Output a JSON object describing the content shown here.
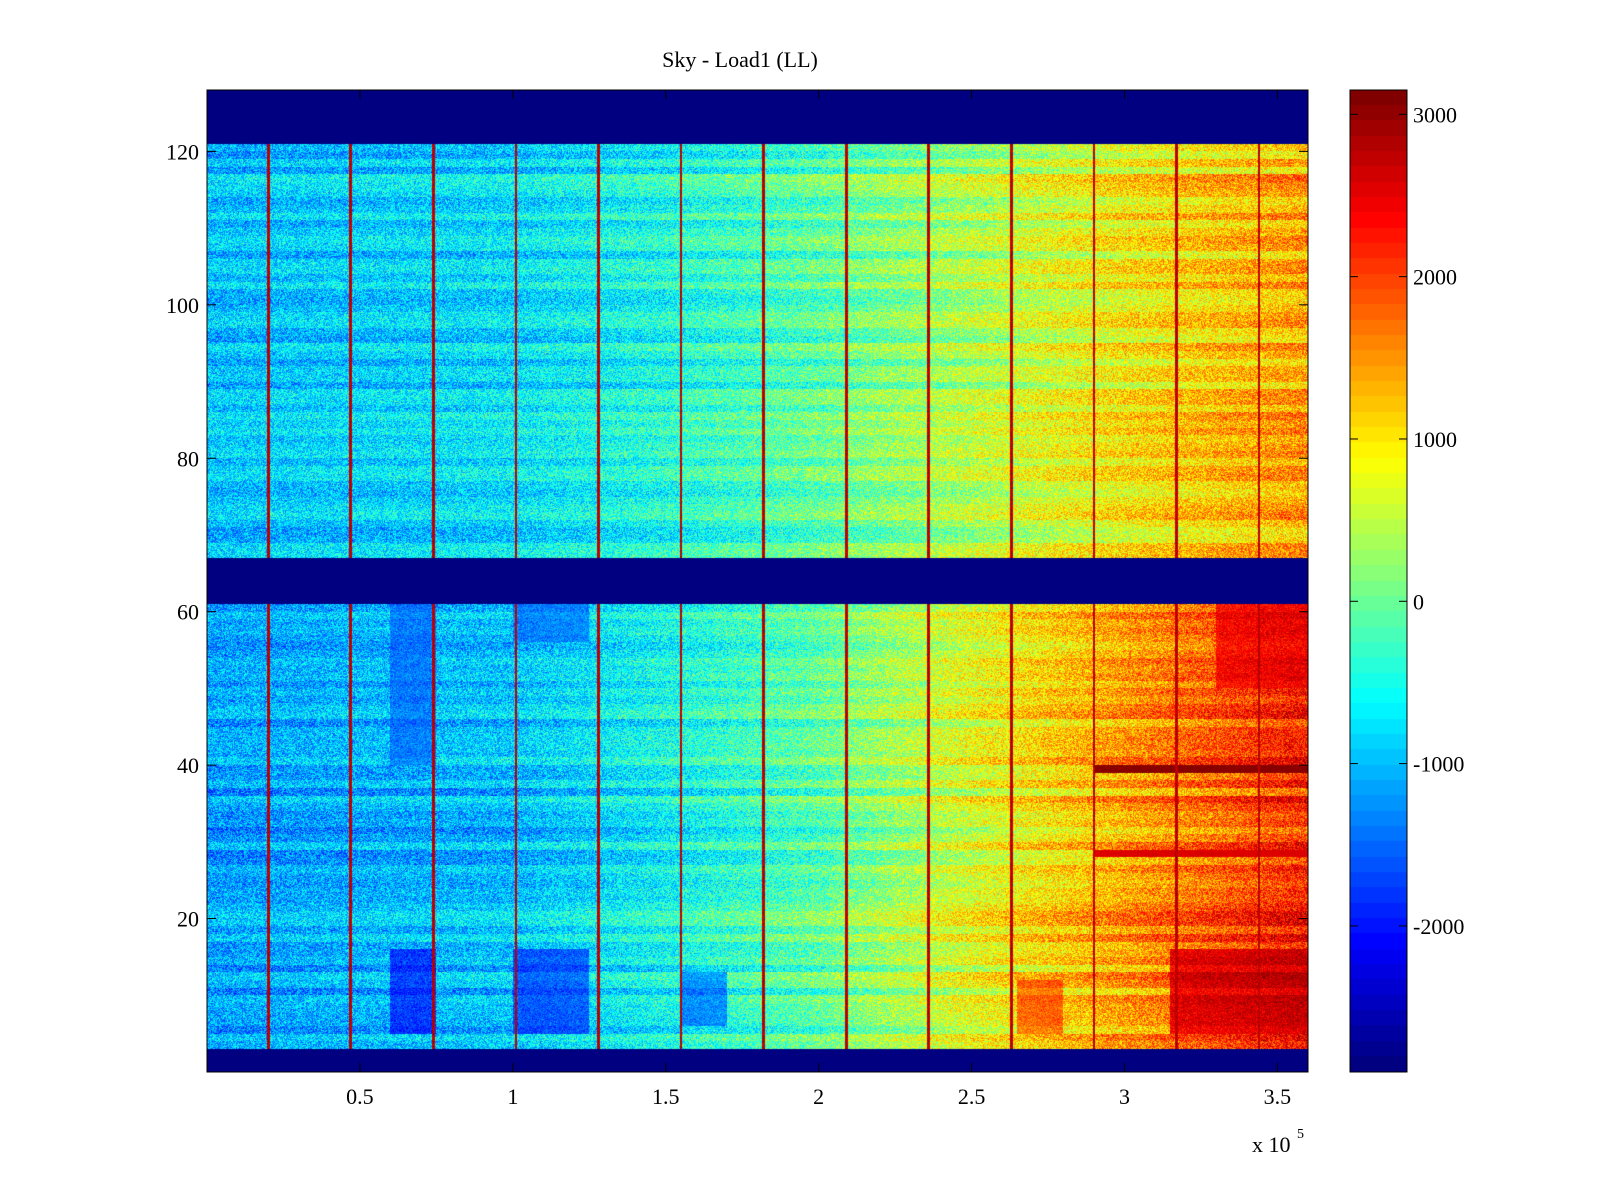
{
  "chart_data": {
    "type": "heatmap",
    "title": "Sky - Load1 (LL)",
    "xlabel": "",
    "ylabel": "",
    "x_multiplier_label": "x 10",
    "x_multiplier_exponent": "5",
    "xlim": [
      0,
      3.6
    ],
    "ylim": [
      0,
      128
    ],
    "x_ticks": [
      0.5,
      1,
      1.5,
      2,
      2.5,
      3,
      3.5
    ],
    "x_tick_labels": [
      "0.5",
      "1",
      "1.5",
      "2",
      "2.5",
      "3",
      "3.5"
    ],
    "y_ticks": [
      20,
      40,
      60,
      80,
      100,
      120
    ],
    "y_tick_labels": [
      "20",
      "40",
      "60",
      "80",
      "100",
      "120"
    ],
    "colormap": "jet",
    "color_limits": [
      -2900,
      3150
    ],
    "colorbar_ticks": [
      3000,
      2000,
      1000,
      0,
      -1000,
      -2000
    ],
    "colorbar_tick_labels": [
      "3000",
      "2000",
      "1000",
      "0",
      "-1000",
      "-2000"
    ],
    "masked_row_ranges": [
      [
        0,
        3
      ],
      [
        61,
        67
      ],
      [
        121,
        128
      ]
    ],
    "masked_value": -2900,
    "trend": {
      "x": [
        0,
        0.5,
        1,
        1.5,
        2,
        2.5,
        3,
        3.6
      ],
      "mean_value": [
        -1000,
        -900,
        -800,
        -500,
        -100,
        400,
        900,
        1400
      ]
    },
    "lower_block_extra_trend": {
      "x": [
        0,
        1,
        2,
        2.5,
        3,
        3.6
      ],
      "offset": [
        -200,
        -200,
        0,
        300,
        500,
        800
      ]
    },
    "vertical_stripes_x": [
      0.2,
      0.47,
      0.74,
      1.01,
      1.28,
      1.55,
      1.82,
      2.09,
      2.36,
      2.63,
      2.9,
      3.17,
      3.44
    ],
    "vertical_stripe_value": 3000,
    "hot_rows": [
      {
        "row": 39,
        "x_start": 2.9,
        "x_end": 3.6,
        "value": 3100
      },
      {
        "row": 28,
        "x_start": 2.9,
        "x_end": 3.6,
        "value": 2600
      }
    ],
    "cold_patches": [
      {
        "x": [
          0.6,
          0.75
        ],
        "y": [
          5,
          16
        ],
        "value": -2300
      },
      {
        "x": [
          1.0,
          1.25
        ],
        "y": [
          5,
          16
        ],
        "value": -2100
      },
      {
        "x": [
          1.55,
          1.7
        ],
        "y": [
          6,
          13
        ],
        "value": -1900
      },
      {
        "x": [
          0.6,
          0.75
        ],
        "y": [
          40,
          61
        ],
        "value": -1700
      },
      {
        "x": [
          1.0,
          1.25
        ],
        "y": [
          56,
          61
        ],
        "value": -1700
      }
    ],
    "hot_patches": [
      {
        "x": [
          3.15,
          3.6
        ],
        "y": [
          5,
          16
        ],
        "value": 3100
      },
      {
        "x": [
          3.3,
          3.6
        ],
        "y": [
          50,
          61
        ],
        "value": 2700
      },
      {
        "x": [
          2.65,
          2.8
        ],
        "y": [
          5,
          12
        ],
        "value": 2300
      }
    ]
  }
}
